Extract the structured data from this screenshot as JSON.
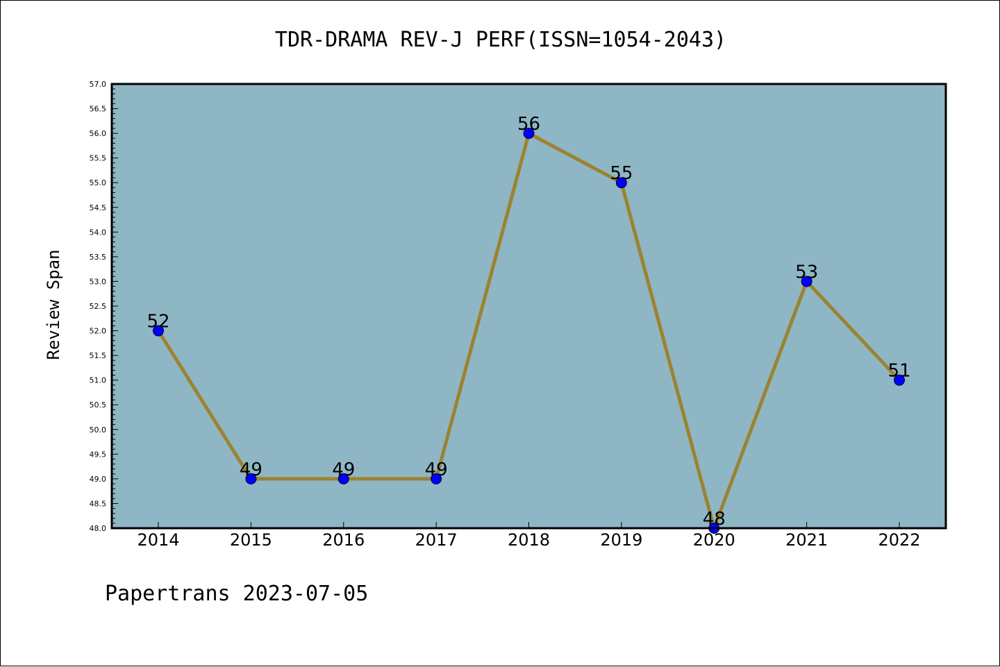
{
  "chart_data": {
    "type": "line",
    "title": "TDR-DRAMA REV-J PERF(ISSN=1054-2043)",
    "xlabel": "",
    "ylabel": "Review Span",
    "categories": [
      "2014",
      "2015",
      "2016",
      "2017",
      "2018",
      "2019",
      "2020",
      "2021",
      "2022"
    ],
    "series": [
      {
        "values": [
          52,
          49,
          49,
          49,
          56,
          55,
          48,
          53,
          51
        ]
      }
    ],
    "data_labels": [
      "52",
      "49",
      "49",
      "49",
      "56",
      "55",
      "48",
      "53",
      "51"
    ],
    "ylim": [
      48.0,
      57.0
    ],
    "ytick_step": 0.5,
    "grid": false,
    "legend": "none",
    "colors": {
      "plot_background": "#8fb6c4",
      "line": "#9b8330",
      "marker": "#0000ff",
      "axes": "#000000"
    }
  },
  "footer": {
    "text": "Papertrans 2023-07-05"
  }
}
